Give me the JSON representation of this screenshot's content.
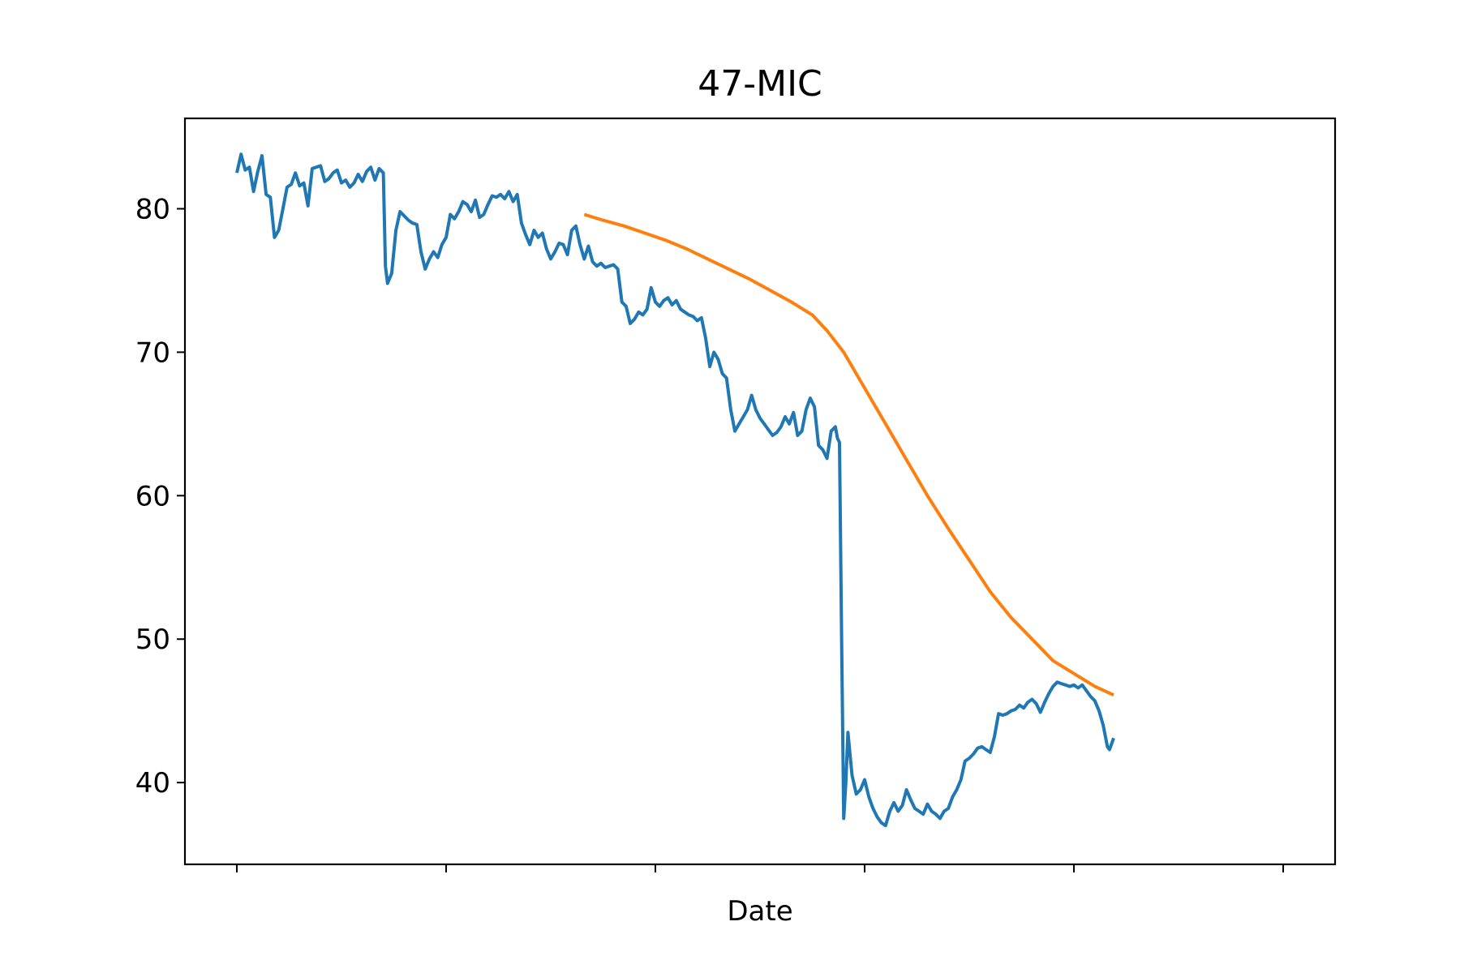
{
  "chart_data": {
    "type": "line",
    "title": "47-MIC",
    "xlabel": "Date",
    "ylabel": "",
    "x_index_range": [
      0,
      500
    ],
    "x_ticks_labeled": false,
    "ylim": [
      34.3,
      86.3
    ],
    "yticks": [
      40,
      50,
      60,
      70,
      80
    ],
    "grid": false,
    "legend": "none",
    "colors": {
      "series_1": "#1f77b4",
      "series_2": "#ff7f0e"
    },
    "series": [
      {
        "color": "#1f77b4",
        "points": [
          [
            0,
            82.5
          ],
          [
            2,
            83.8
          ],
          [
            4,
            82.7
          ],
          [
            6,
            82.9
          ],
          [
            8,
            81.2
          ],
          [
            10,
            82.6
          ],
          [
            12,
            83.7
          ],
          [
            14,
            81.0
          ],
          [
            16,
            80.8
          ],
          [
            18,
            78.0
          ],
          [
            20,
            78.5
          ],
          [
            22,
            80.0
          ],
          [
            24,
            81.5
          ],
          [
            26,
            81.7
          ],
          [
            28,
            82.5
          ],
          [
            30,
            81.6
          ],
          [
            32,
            81.8
          ],
          [
            34,
            80.2
          ],
          [
            36,
            82.8
          ],
          [
            38,
            82.9
          ],
          [
            40,
            83.0
          ],
          [
            42,
            81.9
          ],
          [
            44,
            82.1
          ],
          [
            46,
            82.5
          ],
          [
            48,
            82.7
          ],
          [
            50,
            81.8
          ],
          [
            52,
            82.0
          ],
          [
            54,
            81.5
          ],
          [
            56,
            81.8
          ],
          [
            58,
            82.4
          ],
          [
            60,
            81.9
          ],
          [
            62,
            82.6
          ],
          [
            64,
            82.9
          ],
          [
            66,
            82.0
          ],
          [
            68,
            82.8
          ],
          [
            70,
            82.5
          ],
          [
            71,
            76.0
          ],
          [
            72,
            74.8
          ],
          [
            74,
            75.5
          ],
          [
            76,
            78.5
          ],
          [
            78,
            79.8
          ],
          [
            80,
            79.5
          ],
          [
            82,
            79.2
          ],
          [
            84,
            79.0
          ],
          [
            86,
            78.9
          ],
          [
            88,
            77.0
          ],
          [
            90,
            75.8
          ],
          [
            92,
            76.5
          ],
          [
            94,
            77.0
          ],
          [
            96,
            76.6
          ],
          [
            98,
            77.5
          ],
          [
            100,
            78.0
          ],
          [
            102,
            79.6
          ],
          [
            104,
            79.3
          ],
          [
            106,
            79.8
          ],
          [
            108,
            80.5
          ],
          [
            110,
            80.3
          ],
          [
            112,
            79.8
          ],
          [
            114,
            80.6
          ],
          [
            116,
            79.4
          ],
          [
            118,
            79.6
          ],
          [
            120,
            80.3
          ],
          [
            122,
            80.9
          ],
          [
            124,
            80.8
          ],
          [
            126,
            81.0
          ],
          [
            128,
            80.7
          ],
          [
            130,
            81.2
          ],
          [
            132,
            80.5
          ],
          [
            134,
            81.0
          ],
          [
            136,
            79.0
          ],
          [
            138,
            78.2
          ],
          [
            140,
            77.5
          ],
          [
            142,
            78.5
          ],
          [
            144,
            78.0
          ],
          [
            146,
            78.3
          ],
          [
            148,
            77.2
          ],
          [
            150,
            76.5
          ],
          [
            152,
            77.0
          ],
          [
            154,
            77.6
          ],
          [
            156,
            77.5
          ],
          [
            158,
            76.8
          ],
          [
            160,
            78.5
          ],
          [
            162,
            78.8
          ],
          [
            164,
            77.5
          ],
          [
            166,
            76.5
          ],
          [
            168,
            77.4
          ],
          [
            170,
            76.3
          ],
          [
            172,
            76.0
          ],
          [
            174,
            76.2
          ],
          [
            176,
            75.9
          ],
          [
            178,
            76.0
          ],
          [
            180,
            76.1
          ],
          [
            182,
            75.8
          ],
          [
            184,
            73.5
          ],
          [
            186,
            73.2
          ],
          [
            188,
            72.0
          ],
          [
            190,
            72.3
          ],
          [
            192,
            72.8
          ],
          [
            194,
            72.6
          ],
          [
            196,
            73.0
          ],
          [
            198,
            74.5
          ],
          [
            200,
            73.5
          ],
          [
            202,
            73.2
          ],
          [
            204,
            73.6
          ],
          [
            206,
            73.8
          ],
          [
            208,
            73.3
          ],
          [
            210,
            73.6
          ],
          [
            212,
            73.0
          ],
          [
            214,
            72.8
          ],
          [
            216,
            72.6
          ],
          [
            218,
            72.5
          ],
          [
            220,
            72.2
          ],
          [
            222,
            72.4
          ],
          [
            224,
            71.0
          ],
          [
            226,
            69.0
          ],
          [
            228,
            70.0
          ],
          [
            230,
            69.5
          ],
          [
            232,
            68.5
          ],
          [
            234,
            68.2
          ],
          [
            236,
            66.0
          ],
          [
            238,
            64.5
          ],
          [
            240,
            65.0
          ],
          [
            242,
            65.5
          ],
          [
            244,
            66.0
          ],
          [
            246,
            67.0
          ],
          [
            248,
            66.0
          ],
          [
            250,
            65.4
          ],
          [
            252,
            65.0
          ],
          [
            254,
            64.6
          ],
          [
            256,
            64.2
          ],
          [
            258,
            64.4
          ],
          [
            260,
            64.8
          ],
          [
            262,
            65.5
          ],
          [
            264,
            65.0
          ],
          [
            266,
            65.8
          ],
          [
            268,
            64.2
          ],
          [
            270,
            64.5
          ],
          [
            272,
            66.0
          ],
          [
            274,
            66.8
          ],
          [
            276,
            66.2
          ],
          [
            278,
            63.5
          ],
          [
            280,
            63.2
          ],
          [
            282,
            62.6
          ],
          [
            284,
            64.5
          ],
          [
            286,
            64.8
          ],
          [
            287,
            64.0
          ],
          [
            288,
            63.7
          ],
          [
            289,
            50.0
          ],
          [
            290,
            37.5
          ],
          [
            291,
            40.0
          ],
          [
            292,
            43.5
          ],
          [
            293,
            42.0
          ],
          [
            294,
            40.5
          ],
          [
            296,
            39.2
          ],
          [
            298,
            39.5
          ],
          [
            300,
            40.2
          ],
          [
            302,
            39.0
          ],
          [
            304,
            38.2
          ],
          [
            306,
            37.6
          ],
          [
            308,
            37.2
          ],
          [
            310,
            37.0
          ],
          [
            312,
            38.0
          ],
          [
            314,
            38.6
          ],
          [
            316,
            38.0
          ],
          [
            318,
            38.4
          ],
          [
            320,
            39.5
          ],
          [
            322,
            38.8
          ],
          [
            324,
            38.2
          ],
          [
            326,
            38.0
          ],
          [
            328,
            37.8
          ],
          [
            330,
            38.5
          ],
          [
            332,
            38.0
          ],
          [
            334,
            37.8
          ],
          [
            336,
            37.5
          ],
          [
            338,
            38.0
          ],
          [
            340,
            38.2
          ],
          [
            342,
            39.0
          ],
          [
            344,
            39.5
          ],
          [
            346,
            40.2
          ],
          [
            348,
            41.5
          ],
          [
            350,
            41.7
          ],
          [
            352,
            42.0
          ],
          [
            354,
            42.4
          ],
          [
            356,
            42.5
          ],
          [
            358,
            42.3
          ],
          [
            360,
            42.1
          ],
          [
            362,
            43.2
          ],
          [
            364,
            44.8
          ],
          [
            366,
            44.7
          ],
          [
            368,
            44.8
          ],
          [
            370,
            45.0
          ],
          [
            372,
            45.1
          ],
          [
            374,
            45.4
          ],
          [
            376,
            45.2
          ],
          [
            378,
            45.6
          ],
          [
            380,
            45.8
          ],
          [
            382,
            45.5
          ],
          [
            384,
            44.9
          ],
          [
            386,
            45.6
          ],
          [
            388,
            46.2
          ],
          [
            390,
            46.7
          ],
          [
            392,
            47.0
          ],
          [
            394,
            46.9
          ],
          [
            396,
            46.8
          ],
          [
            398,
            46.7
          ],
          [
            400,
            46.8
          ],
          [
            402,
            46.6
          ],
          [
            404,
            46.8
          ],
          [
            406,
            46.4
          ],
          [
            408,
            46.0
          ],
          [
            410,
            45.7
          ],
          [
            412,
            45.0
          ],
          [
            414,
            44.0
          ],
          [
            416,
            42.5
          ],
          [
            417,
            42.3
          ],
          [
            419,
            43.1
          ]
        ]
      },
      {
        "color": "#ff7f0e",
        "points": [
          [
            166,
            79.6
          ],
          [
            175,
            79.2
          ],
          [
            185,
            78.8
          ],
          [
            195,
            78.3
          ],
          [
            205,
            77.8
          ],
          [
            215,
            77.2
          ],
          [
            225,
            76.5
          ],
          [
            235,
            75.8
          ],
          [
            245,
            75.1
          ],
          [
            255,
            74.3
          ],
          [
            265,
            73.5
          ],
          [
            275,
            72.6
          ],
          [
            282,
            71.5
          ],
          [
            290,
            70.0
          ],
          [
            300,
            67.5
          ],
          [
            310,
            65.0
          ],
          [
            320,
            62.5
          ],
          [
            330,
            60.0
          ],
          [
            340,
            57.7
          ],
          [
            350,
            55.5
          ],
          [
            360,
            53.3
          ],
          [
            370,
            51.5
          ],
          [
            380,
            50.0
          ],
          [
            390,
            48.5
          ],
          [
            400,
            47.6
          ],
          [
            410,
            46.7
          ],
          [
            419,
            46.1
          ]
        ]
      }
    ]
  }
}
